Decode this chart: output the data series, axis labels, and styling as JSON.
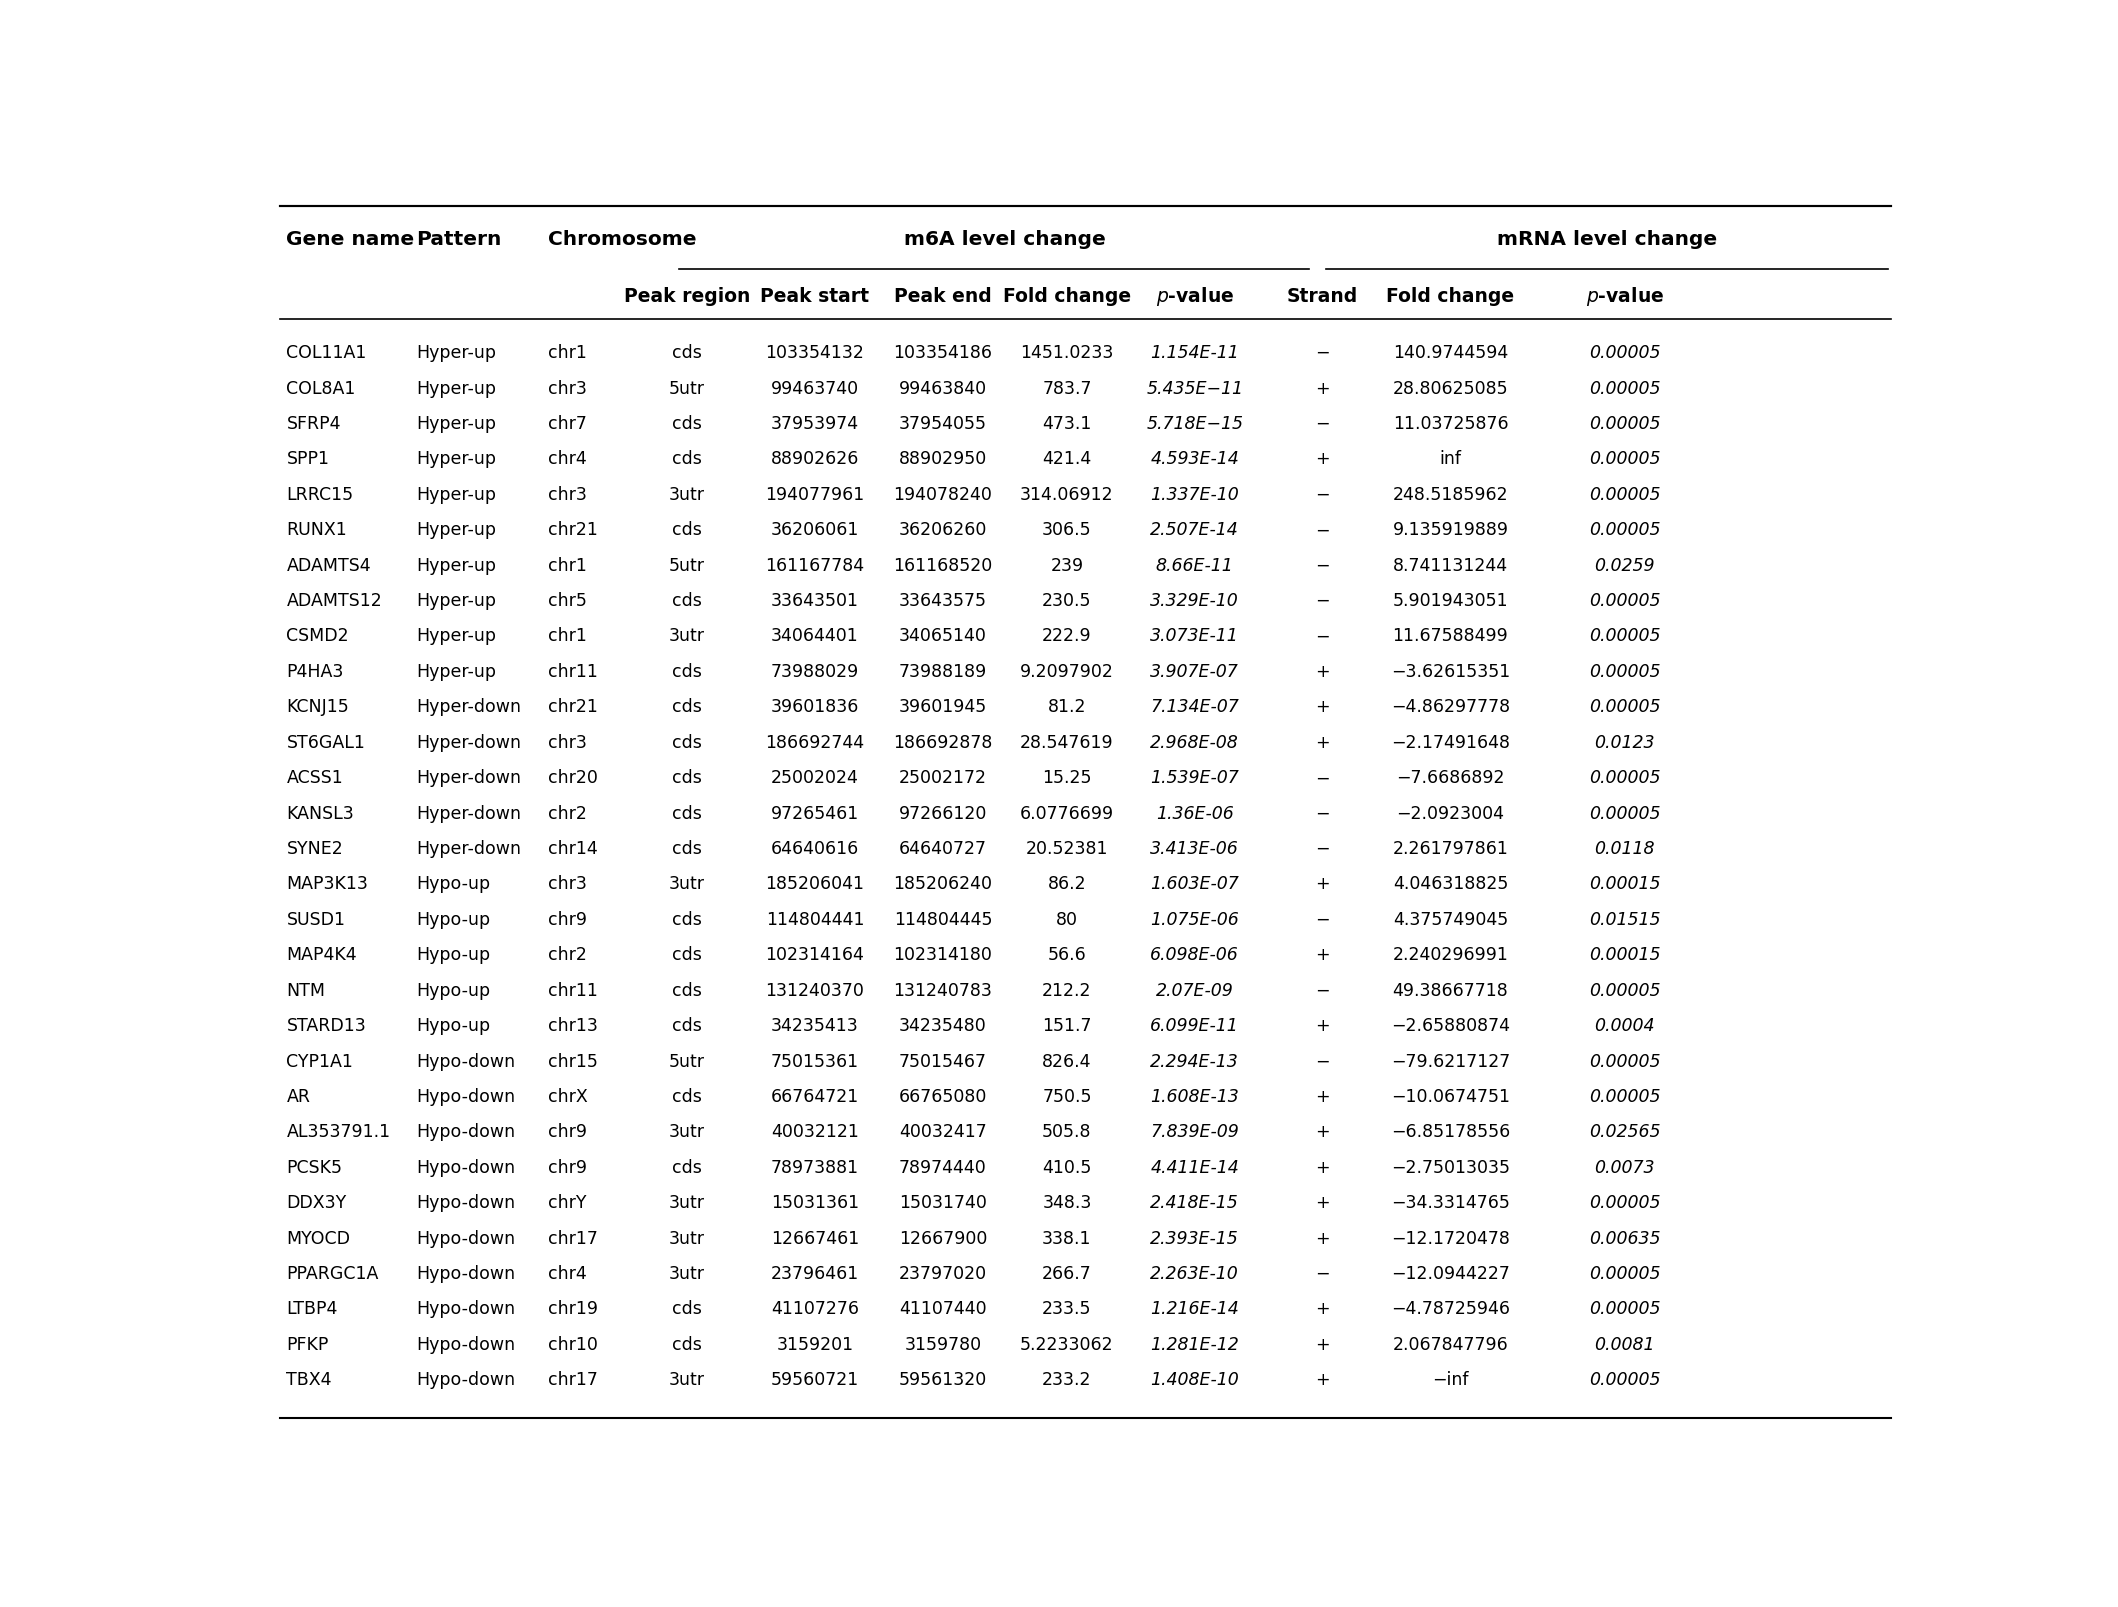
{
  "rows": [
    [
      "COL11A1",
      "Hyper-up",
      "chr1",
      "cds",
      "103354132",
      "103354186",
      "1451.0233",
      "1.154E-11",
      "−",
      "140.9744594",
      "0.00005"
    ],
    [
      "COL8A1",
      "Hyper-up",
      "chr3",
      "5utr",
      "99463740",
      "99463840",
      "783.7",
      "5.435E−11",
      "+",
      "28.80625085",
      "0.00005"
    ],
    [
      "SFRP4",
      "Hyper-up",
      "chr7",
      "cds",
      "37953974",
      "37954055",
      "473.1",
      "5.718E−15",
      "−",
      "11.03725876",
      "0.00005"
    ],
    [
      "SPP1",
      "Hyper-up",
      "chr4",
      "cds",
      "88902626",
      "88902950",
      "421.4",
      "4.593E-14",
      "+",
      "inf",
      "0.00005"
    ],
    [
      "LRRC15",
      "Hyper-up",
      "chr3",
      "3utr",
      "194077961",
      "194078240",
      "314.06912",
      "1.337E-10",
      "−",
      "248.5185962",
      "0.00005"
    ],
    [
      "RUNX1",
      "Hyper-up",
      "chr21",
      "cds",
      "36206061",
      "36206260",
      "306.5",
      "2.507E-14",
      "−",
      "9.135919889",
      "0.00005"
    ],
    [
      "ADAMTS4",
      "Hyper-up",
      "chr1",
      "5utr",
      "161167784",
      "161168520",
      "239",
      "8.66E-11",
      "−",
      "8.741131244",
      "0.0259"
    ],
    [
      "ADAMTS12",
      "Hyper-up",
      "chr5",
      "cds",
      "33643501",
      "33643575",
      "230.5",
      "3.329E-10",
      "−",
      "5.901943051",
      "0.00005"
    ],
    [
      "CSMD2",
      "Hyper-up",
      "chr1",
      "3utr",
      "34064401",
      "34065140",
      "222.9",
      "3.073E-11",
      "−",
      "11.67588499",
      "0.00005"
    ],
    [
      "P4HA3",
      "Hyper-up",
      "chr11",
      "cds",
      "73988029",
      "73988189",
      "9.2097902",
      "3.907E-07",
      "+",
      "−3.62615351",
      "0.00005"
    ],
    [
      "KCNJ15",
      "Hyper-down",
      "chr21",
      "cds",
      "39601836",
      "39601945",
      "81.2",
      "7.134E-07",
      "+",
      "−4.86297778",
      "0.00005"
    ],
    [
      "ST6GAL1",
      "Hyper-down",
      "chr3",
      "cds",
      "186692744",
      "186692878",
      "28.547619",
      "2.968E-08",
      "+",
      "−2.17491648",
      "0.0123"
    ],
    [
      "ACSS1",
      "Hyper-down",
      "chr20",
      "cds",
      "25002024",
      "25002172",
      "15.25",
      "1.539E-07",
      "−",
      "−7.6686892",
      "0.00005"
    ],
    [
      "KANSL3",
      "Hyper-down",
      "chr2",
      "cds",
      "97265461",
      "97266120",
      "6.0776699",
      "1.36E-06",
      "−",
      "−2.0923004",
      "0.00005"
    ],
    [
      "SYNE2",
      "Hyper-down",
      "chr14",
      "cds",
      "64640616",
      "64640727",
      "20.52381",
      "3.413E-06",
      "−",
      "2.261797861",
      "0.0118"
    ],
    [
      "MAP3K13",
      "Hypo-up",
      "chr3",
      "3utr",
      "185206041",
      "185206240",
      "86.2",
      "1.603E-07",
      "+",
      "4.046318825",
      "0.00015"
    ],
    [
      "SUSD1",
      "Hypo-up",
      "chr9",
      "cds",
      "114804441",
      "114804445",
      "80",
      "1.075E-06",
      "−",
      "4.375749045",
      "0.01515"
    ],
    [
      "MAP4K4",
      "Hypo-up",
      "chr2",
      "cds",
      "102314164",
      "102314180",
      "56.6",
      "6.098E-06",
      "+",
      "2.240296991",
      "0.00015"
    ],
    [
      "NTM",
      "Hypo-up",
      "chr11",
      "cds",
      "131240370",
      "131240783",
      "212.2",
      "2.07E-09",
      "−",
      "49.38667718",
      "0.00005"
    ],
    [
      "STARD13",
      "Hypo-up",
      "chr13",
      "cds",
      "34235413",
      "34235480",
      "151.7",
      "6.099E-11",
      "+",
      "−2.65880874",
      "0.0004"
    ],
    [
      "CYP1A1",
      "Hypo-down",
      "chr15",
      "5utr",
      "75015361",
      "75015467",
      "826.4",
      "2.294E-13",
      "−",
      "−79.6217127",
      "0.00005"
    ],
    [
      "AR",
      "Hypo-down",
      "chrX",
      "cds",
      "66764721",
      "66765080",
      "750.5",
      "1.608E-13",
      "+",
      "−10.0674751",
      "0.00005"
    ],
    [
      "AL353791.1",
      "Hypo-down",
      "chr9",
      "3utr",
      "40032121",
      "40032417",
      "505.8",
      "7.839E-09",
      "+",
      "−6.85178556",
      "0.02565"
    ],
    [
      "PCSK5",
      "Hypo-down",
      "chr9",
      "cds",
      "78973881",
      "78974440",
      "410.5",
      "4.411E-14",
      "+",
      "−2.75013035",
      "0.0073"
    ],
    [
      "DDX3Y",
      "Hypo-down",
      "chrY",
      "3utr",
      "15031361",
      "15031740",
      "348.3",
      "2.418E-15",
      "+",
      "−34.3314765",
      "0.00005"
    ],
    [
      "MYOCD",
      "Hypo-down",
      "chr17",
      "3utr",
      "12667461",
      "12667900",
      "338.1",
      "2.393E-15",
      "+",
      "−12.1720478",
      "0.00635"
    ],
    [
      "PPARGC1A",
      "Hypo-down",
      "chr4",
      "3utr",
      "23796461",
      "23797020",
      "266.7",
      "2.263E-10",
      "−",
      "−12.0944227",
      "0.00005"
    ],
    [
      "LTBP4",
      "Hypo-down",
      "chr19",
      "cds",
      "41107276",
      "41107440",
      "233.5",
      "1.216E-14",
      "+",
      "−4.78725946",
      "0.00005"
    ],
    [
      "PFKP",
      "Hypo-down",
      "chr10",
      "cds",
      "3159201",
      "3159780",
      "5.2233062",
      "1.281E-12",
      "+",
      "2.067847796",
      "0.0081"
    ],
    [
      "TBX4",
      "Hypo-down",
      "chr17",
      "3utr",
      "59560721",
      "59561320",
      "233.2",
      "1.408E-10",
      "+",
      "−inf",
      "0.00005"
    ]
  ],
  "bg_color": "#ffffff",
  "text_color": "#000000",
  "line_color": "#888888"
}
